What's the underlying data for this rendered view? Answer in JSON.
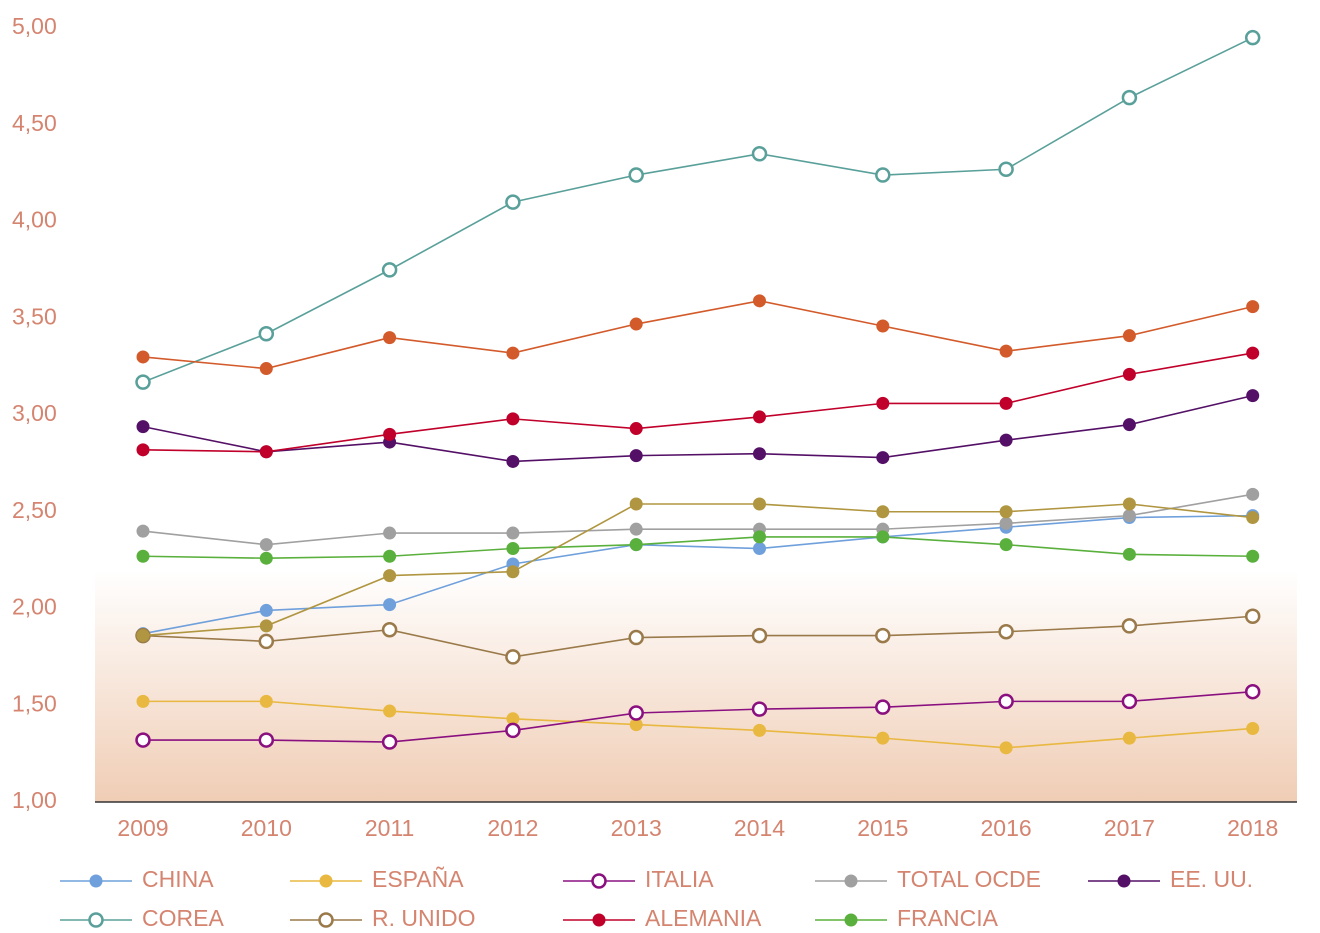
{
  "chart_data": {
    "type": "line",
    "categories": [
      "2009",
      "2010",
      "2011",
      "2012",
      "2013",
      "2014",
      "2015",
      "2016",
      "2017",
      "2018"
    ],
    "ylim": [
      1,
      5
    ],
    "yticks": [
      {
        "value": 1,
        "label": "1,00"
      },
      {
        "value": 1.5,
        "label": "1,50"
      },
      {
        "value": 2,
        "label": "2,00"
      },
      {
        "value": 2.5,
        "label": "2,50"
      },
      {
        "value": 3,
        "label": "3,00"
      },
      {
        "value": 3.5,
        "label": "3,50"
      },
      {
        "value": 4,
        "label": "4,00"
      },
      {
        "value": 4.5,
        "label": "4,50"
      },
      {
        "value": 5,
        "label": "5,00"
      }
    ],
    "grid": false,
    "legend": "bottom",
    "series": [
      {
        "name": "CHINA",
        "color": "#6fa0dc",
        "marker": "filled",
        "values": [
          1.87,
          1.99,
          2.02,
          2.23,
          2.33,
          2.31,
          2.37,
          2.42,
          2.47,
          2.48
        ]
      },
      {
        "name": "ESPAÑA",
        "color": "#e8b840",
        "marker": "filled",
        "values": [
          1.52,
          1.52,
          1.47,
          1.43,
          1.4,
          1.37,
          1.33,
          1.28,
          1.33,
          1.38
        ]
      },
      {
        "name": "ITALIA",
        "color": "#8a1080",
        "marker": "hollow",
        "values": [
          1.32,
          1.32,
          1.31,
          1.37,
          1.46,
          1.48,
          1.49,
          1.52,
          1.52,
          1.57
        ]
      },
      {
        "name": "TOTAL OCDE",
        "color": "#a0a0a0",
        "marker": "filled",
        "values": [
          2.4,
          2.33,
          2.39,
          2.39,
          2.41,
          2.41,
          2.41,
          2.44,
          2.48,
          2.59
        ]
      },
      {
        "name": "EE. UU.",
        "color": "#541066",
        "marker": "filled",
        "values": [
          2.94,
          2.81,
          2.86,
          2.76,
          2.79,
          2.8,
          2.78,
          2.87,
          2.95,
          3.1
        ]
      },
      {
        "name": "COREA",
        "color": "#5aa09a",
        "marker": "hollow",
        "values": [
          3.17,
          3.42,
          3.75,
          4.1,
          4.24,
          4.35,
          4.24,
          4.27,
          4.64,
          4.95
        ]
      },
      {
        "name": "R. UNIDO",
        "color": "#9a7a4a",
        "marker": "hollow",
        "values": [
          1.86,
          1.83,
          1.89,
          1.75,
          1.85,
          1.86,
          1.86,
          1.88,
          1.91,
          1.96
        ]
      },
      {
        "name": "ALEMANIA",
        "color": "#c0002a",
        "marker": "filled",
        "values": [
          2.82,
          2.81,
          2.9,
          2.98,
          2.93,
          2.99,
          3.06,
          3.06,
          3.21,
          3.32
        ]
      },
      {
        "name": "FRANCIA",
        "color": "#5ab03c",
        "marker": "filled",
        "values": [
          2.27,
          2.26,
          2.27,
          2.31,
          2.33,
          2.37,
          2.37,
          2.33,
          2.28,
          2.27
        ]
      },
      {
        "color": "#d35a2a",
        "marker": "filled",
        "values": [
          3.3,
          3.24,
          3.4,
          3.32,
          3.47,
          3.59,
          3.46,
          3.33,
          3.41,
          3.56
        ]
      },
      {
        "color": "#b09640",
        "marker": "filled",
        "values": [
          1.86,
          1.91,
          2.17,
          2.19,
          2.54,
          2.54,
          2.5,
          2.5,
          2.54,
          2.47
        ]
      }
    ]
  }
}
